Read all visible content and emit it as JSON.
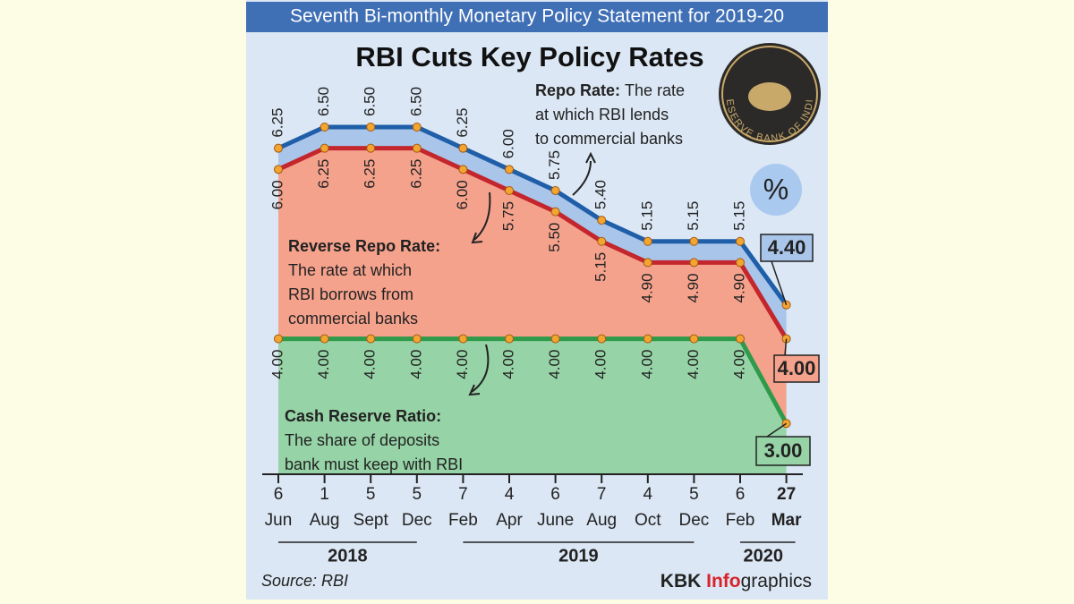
{
  "chart_data": {
    "type": "line",
    "header": "Seventh Bi-monthly Monetary Policy Statement for 2019-20",
    "title": "RBI Cuts Key Policy Rates",
    "unit_badge": "%",
    "logo_text": "RESERVE BANK OF INDIA",
    "categories": [
      [
        "6",
        "Jun"
      ],
      [
        "1",
        "Aug"
      ],
      [
        "5",
        "Sept"
      ],
      [
        "5",
        "Dec"
      ],
      [
        "7",
        "Feb"
      ],
      [
        "4",
        "Apr"
      ],
      [
        "6",
        "June"
      ],
      [
        "7",
        "Aug"
      ],
      [
        "4",
        "Oct"
      ],
      [
        "5",
        "Dec"
      ],
      [
        "6",
        "Feb"
      ],
      [
        "27",
        "Mar"
      ]
    ],
    "years": [
      "2018",
      "2019",
      "2020"
    ],
    "ylim": [
      2.4,
      6.5
    ],
    "series": [
      {
        "name": "Repo Rate:",
        "description": [
          "The rate",
          "at which RBI lends",
          "to commercial banks"
        ],
        "color": "#1f5ea8",
        "fill": "#a9c5ea",
        "values": [
          6.25,
          6.5,
          6.5,
          6.5,
          6.25,
          6.0,
          5.75,
          5.4,
          5.15,
          5.15,
          5.15,
          4.4
        ],
        "value_labels": [
          "6.25",
          "6.50",
          "6.50",
          "6.50",
          "6.25",
          "6.00",
          "5.75",
          "5.40",
          "5.15",
          "5.15",
          "5.15",
          "4.40"
        ]
      },
      {
        "name": "Reverse Repo Rate:",
        "description": [
          "The rate at which",
          "RBI borrows from",
          "commercial banks"
        ],
        "color": "#c3262d",
        "fill": "#f5a28d",
        "values": [
          6.0,
          6.25,
          6.25,
          6.25,
          6.0,
          5.75,
          5.5,
          5.15,
          4.9,
          4.9,
          4.9,
          4.0
        ],
        "value_labels": [
          "6.00",
          "6.25",
          "6.25",
          "6.25",
          "6.00",
          "5.75",
          "5.50",
          "5.15",
          "4.90",
          "4.90",
          "4.90",
          "4.00"
        ]
      },
      {
        "name": "Cash Reserve Ratio:",
        "description": [
          "The share of deposits",
          "bank must keep with RBI"
        ],
        "color": "#2e9a4a",
        "fill": "#96d3a6",
        "values": [
          4.0,
          4.0,
          4.0,
          4.0,
          4.0,
          4.0,
          4.0,
          4.0,
          4.0,
          4.0,
          4.0,
          3.0
        ],
        "value_labels": [
          "4.00",
          "4.00",
          "4.00",
          "4.00",
          "4.00",
          "4.00",
          "4.00",
          "4.00",
          "4.00",
          "4.00",
          "4.00",
          "3.00"
        ]
      }
    ],
    "source": "Source: RBI",
    "credit": [
      "KBK ",
      "Info",
      "graphics"
    ]
  }
}
